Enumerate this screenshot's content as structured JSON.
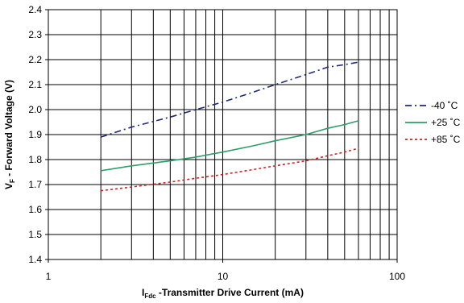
{
  "chart_data": {
    "type": "line",
    "title": "",
    "xlabel": {
      "main": "I",
      "sub": "Fdc",
      "rest": " -Transmitter Drive Current (mA)"
    },
    "ylabel": {
      "main": "V",
      "sub": "F",
      "rest": " - Forward Voltage (V)"
    },
    "x_scale": "log",
    "xlim": [
      1,
      100
    ],
    "ylim": [
      1.4,
      2.4
    ],
    "x_ticks": [
      1,
      10,
      100
    ],
    "x_tick_labels": [
      "1",
      "10",
      "100"
    ],
    "y_ticks": [
      1.4,
      1.5,
      1.6,
      1.7,
      1.8,
      1.9,
      2.0,
      2.1,
      2.2,
      2.3,
      2.4
    ],
    "y_tick_labels": [
      "1.4",
      "1.5",
      "1.6",
      "1.7",
      "1.8",
      "1.9",
      "2.0",
      "2.1",
      "2.2",
      "2.3",
      "2.4"
    ],
    "grid": true,
    "legend_position": "right",
    "series": [
      {
        "name": "-40 ˚C",
        "color": "#1f2a7a",
        "dash": "dash-dot",
        "x": [
          2,
          3,
          5,
          7,
          10,
          15,
          20,
          30,
          40,
          50,
          60
        ],
        "y": [
          1.89,
          1.93,
          1.97,
          2.0,
          2.03,
          2.07,
          2.1,
          2.14,
          2.17,
          2.18,
          2.19
        ]
      },
      {
        "name": "+25 ˚C",
        "color": "#2e9e6a",
        "dash": "solid",
        "x": [
          2,
          3,
          5,
          7,
          10,
          15,
          20,
          30,
          40,
          50,
          60
        ],
        "y": [
          1.755,
          1.775,
          1.795,
          1.81,
          1.83,
          1.855,
          1.875,
          1.9,
          1.925,
          1.94,
          1.955
        ]
      },
      {
        "name": "+85 ˚C",
        "color": "#d42020",
        "dash": "dotted",
        "x": [
          2,
          3,
          5,
          7,
          10,
          15,
          20,
          30,
          40,
          50,
          60
        ],
        "y": [
          1.675,
          1.69,
          1.71,
          1.725,
          1.74,
          1.76,
          1.775,
          1.795,
          1.815,
          1.83,
          1.845
        ]
      }
    ]
  }
}
